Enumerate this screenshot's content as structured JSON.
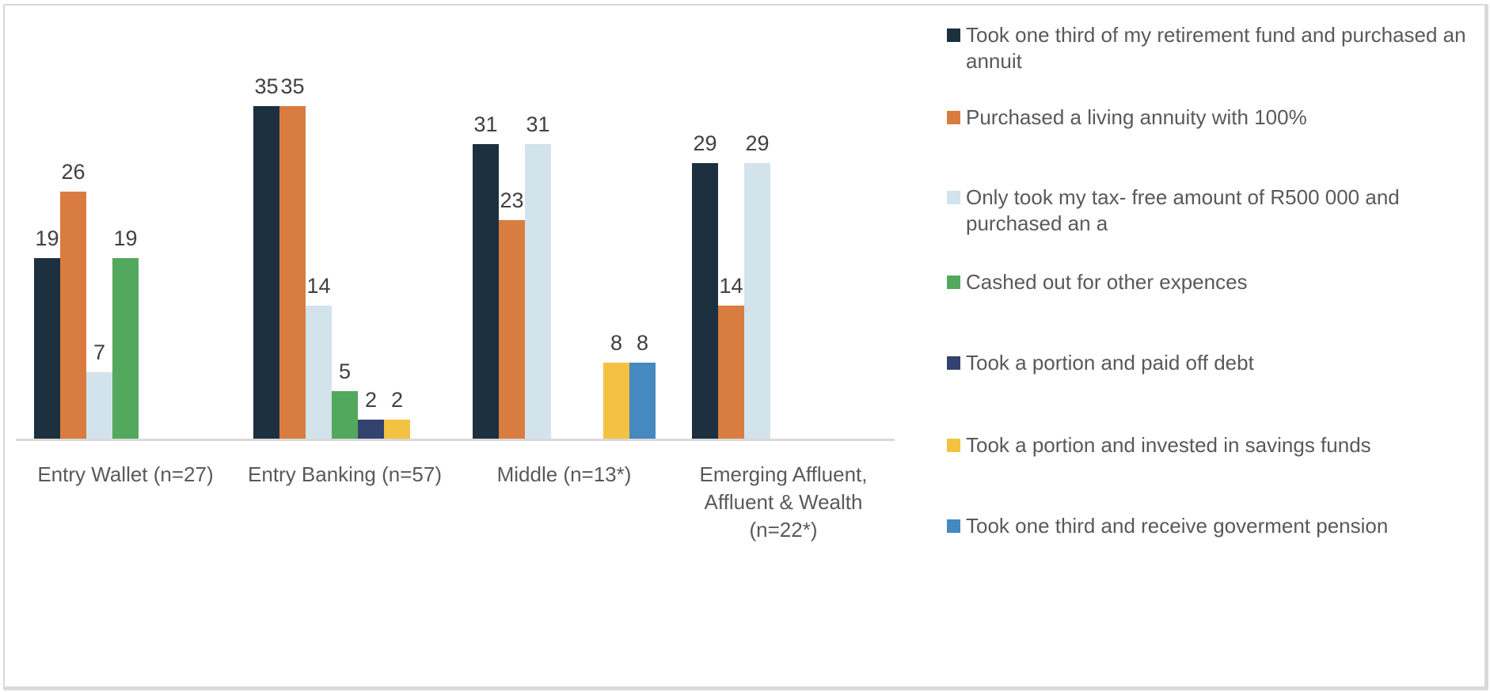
{
  "chart_data": {
    "type": "bar",
    "title": "",
    "xlabel": "",
    "ylabel": "",
    "gridlines": false,
    "value_axis": {
      "min": 0,
      "max": 43,
      "visible": false
    },
    "legend_position": "right",
    "data_labels": true,
    "categories": [
      "Entry Wallet (n=27)",
      "Entry Banking (n=57)",
      "Middle (n=13*)",
      "Emerging Affluent, Affluent & Wealth (n=22*)"
    ],
    "series": [
      {
        "name": "Took one third of my retirement fund and purchased an annuit",
        "color": "#1c3040",
        "values": [
          19,
          35,
          31,
          29
        ]
      },
      {
        "name": "Purchased a living annuity with 100%",
        "color": "#d87c40",
        "values": [
          26,
          35,
          23,
          14
        ]
      },
      {
        "name": "Only took my tax- free amount of R500 000 and purchased an a",
        "color": "#d3e3eb",
        "values": [
          7,
          14,
          31,
          29
        ]
      },
      {
        "name": "Cashed out for other expences",
        "color": "#52a85c",
        "values": [
          19,
          5,
          0,
          0
        ]
      },
      {
        "name": "Took a portion and paid off debt",
        "color": "#344270",
        "values": [
          0,
          2,
          0,
          0
        ]
      },
      {
        "name": "Took a portion and invested in savings funds",
        "color": "#f3c243",
        "values": [
          0,
          2,
          8,
          0
        ]
      },
      {
        "name": "Took one third and receive goverment pension",
        "color": "#4589c0",
        "values": [
          0,
          0,
          8,
          0
        ]
      }
    ]
  },
  "style_colors": {
    "axis_line": "#d9d9d9",
    "data_label_text": "#404040",
    "axis_label_text": "#595959",
    "legend_text": "#595959",
    "frame_border": "#d9d9d9",
    "background": "#ffffff"
  }
}
